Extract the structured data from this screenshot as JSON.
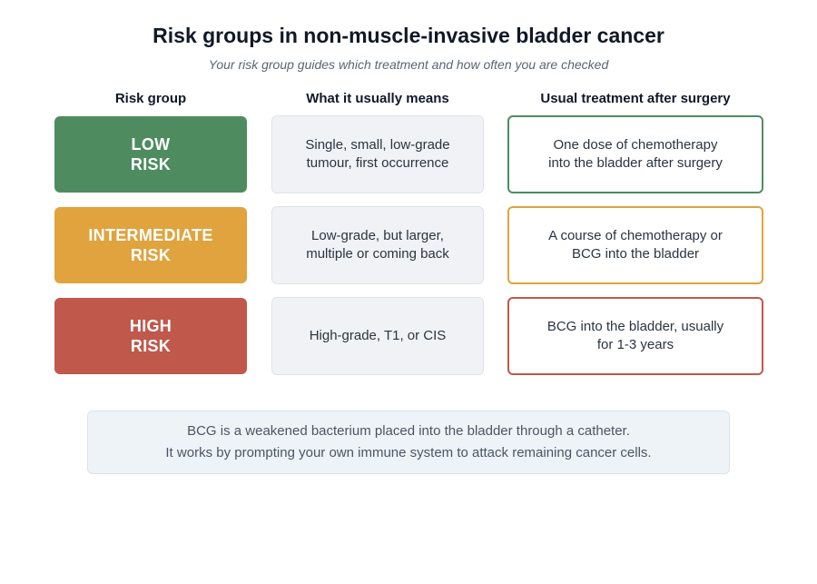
{
  "title": "Risk groups in non-muscle-invasive bladder cancer",
  "subtitle": "Your risk group guides which treatment and how often you are checked",
  "columns": {
    "risk": "Risk group",
    "means": "What it usually means",
    "treatment": "Usual treatment after surgery"
  },
  "rows": [
    {
      "risk_line1": "LOW",
      "risk_line2": "RISK",
      "means_line1": "Single, small, low-grade",
      "means_line2": "tumour, first occurrence",
      "treat_line1": "One dose of chemotherapy",
      "treat_line2": "into the bladder after surgery",
      "color": "#4e8c5f"
    },
    {
      "risk_line1": "INTERMEDIATE",
      "risk_line2": "RISK",
      "means_line1": "Low-grade, but larger,",
      "means_line2": "multiple or coming back",
      "treat_line1": "A course of chemotherapy or",
      "treat_line2": "BCG into the bladder",
      "color": "#e0a33e"
    },
    {
      "risk_line1": "HIGH",
      "risk_line2": "RISK",
      "means_line1": "High-grade, T1, or CIS",
      "means_line2": "",
      "treat_line1": "BCG into the bladder, usually",
      "treat_line2": "for 1-3 years",
      "color": "#c0584b"
    }
  ],
  "note": {
    "line1": "BCG is a weakened bacterium placed into the bladder through a catheter.",
    "line2": "It works by prompting your own immune system to attack remaining cancer cells."
  }
}
